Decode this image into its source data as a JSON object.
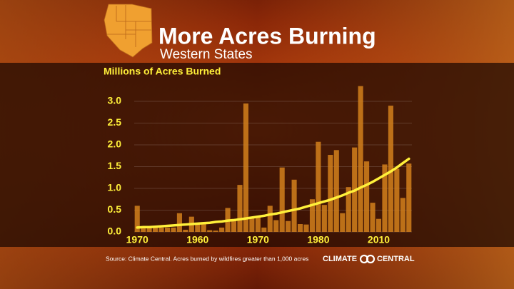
{
  "chart_data": {
    "type": "bar",
    "title": "More Acres Burning",
    "subtitle": "Western States",
    "y_label": "Millions of Acres Burned",
    "source": "Source: Climate Central. Acres burned by wildfires greater than 1,000 acres",
    "logo_left": "CLIMATE",
    "logo_right": "CENTRAL",
    "categories": [
      "1970",
      null,
      null,
      null,
      null,
      null,
      null,
      null,
      null,
      null,
      "1960",
      null,
      null,
      null,
      null,
      null,
      null,
      null,
      null,
      null,
      "1970",
      null,
      null,
      null,
      null,
      null,
      null,
      null,
      null,
      null,
      "1980",
      null,
      null,
      null,
      null,
      null,
      null,
      null,
      null,
      null,
      "2010",
      null,
      null,
      null,
      null,
      null
    ],
    "values": [
      0.6,
      0.1,
      0.1,
      0.1,
      0.1,
      0.1,
      0.1,
      0.43,
      0.05,
      0.35,
      0.18,
      0.2,
      0.04,
      0.03,
      0.1,
      0.55,
      0.3,
      1.08,
      2.95,
      0.35,
      0.35,
      0.1,
      0.6,
      0.27,
      1.48,
      0.25,
      1.2,
      0.18,
      0.17,
      0.75,
      2.07,
      0.62,
      1.77,
      1.88,
      0.43,
      1.03,
      1.94,
      3.35,
      1.62,
      0.67,
      0.3,
      1.55,
      2.9,
      1.45,
      0.78,
      1.57
    ],
    "color": "#d2801c",
    "trend": {
      "color": "#fff03a",
      "values": [
        0.1,
        0.11,
        0.11,
        0.12,
        0.13,
        0.14,
        0.15,
        0.16,
        0.17,
        0.18,
        0.19,
        0.2,
        0.21,
        0.23,
        0.24,
        0.26,
        0.27,
        0.29,
        0.31,
        0.33,
        0.35,
        0.37,
        0.4,
        0.42,
        0.45,
        0.48,
        0.51,
        0.54,
        0.58,
        0.62,
        0.66,
        0.7,
        0.74,
        0.79,
        0.84,
        0.9,
        0.95,
        1.02,
        1.08,
        1.15,
        1.23,
        1.31,
        1.39,
        1.48,
        1.58,
        1.68
      ]
    },
    "ylim": [
      0,
      3.5
    ],
    "yticks": [
      {
        "value": 0,
        "label": "0.0"
      },
      0.5,
      {
        "value": 1,
        "label": "1.0"
      },
      1.5,
      {
        "value": 2,
        "label": "2.0"
      },
      2.5,
      {
        "value": 3,
        "label": "3.0"
      }
    ],
    "grid": true
  }
}
